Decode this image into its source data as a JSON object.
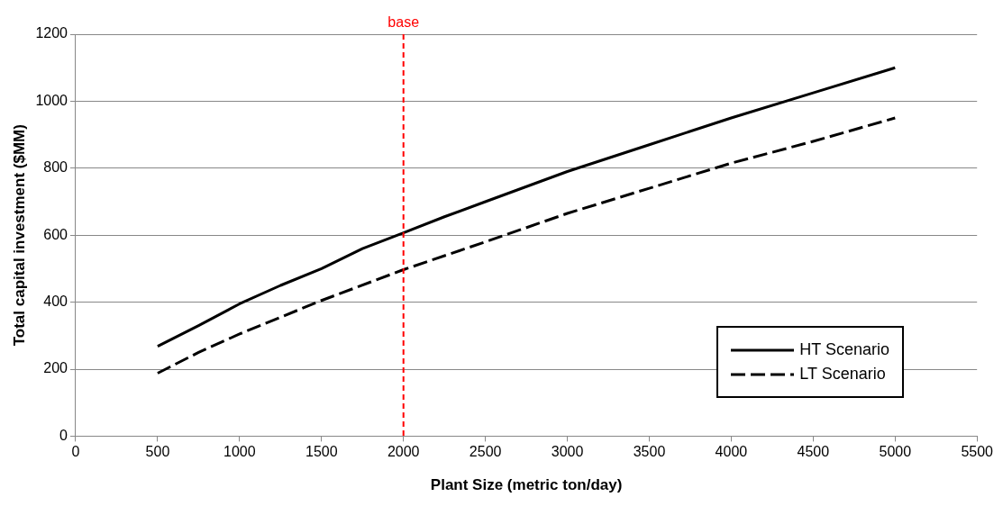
{
  "chart_data": {
    "type": "line",
    "xlabel": "Plant Size (metric ton/day)",
    "ylabel": "Total capital investment ($MM)",
    "xlim": [
      0,
      5500
    ],
    "xticks": [
      0,
      500,
      1000,
      1500,
      2000,
      2500,
      3000,
      3500,
      4000,
      4500,
      5000,
      5500
    ],
    "ylim": [
      0,
      1200
    ],
    "yticks": [
      0,
      200,
      400,
      600,
      800,
      1000,
      1200
    ],
    "grid": "y",
    "legend": "bottom right",
    "marker": "none",
    "series": [
      {
        "name": "HT Scenario",
        "color": "#000000",
        "line_style": "solid",
        "x": [
          500,
          750,
          1000,
          1250,
          1500,
          1750,
          2000,
          2250,
          2500,
          3000,
          3500,
          4000,
          4500,
          5000
        ],
        "values": [
          268,
          330,
          395,
          450,
          500,
          560,
          607,
          655,
          700,
          790,
          870,
          950,
          1025,
          1100
        ]
      },
      {
        "name": "LT Scenario",
        "color": "#000000",
        "line_style": "dashed",
        "x": [
          500,
          750,
          1000,
          1500,
          2000,
          2500,
          3000,
          3500,
          4000,
          4500,
          5000
        ],
        "values": [
          188,
          250,
          305,
          405,
          497,
          580,
          665,
          740,
          815,
          880,
          950
        ]
      }
    ],
    "ref_lines": [
      {
        "axis": "x",
        "value": 2000,
        "label": "base",
        "color": "#ff0000",
        "line_style": "dashed"
      }
    ]
  }
}
